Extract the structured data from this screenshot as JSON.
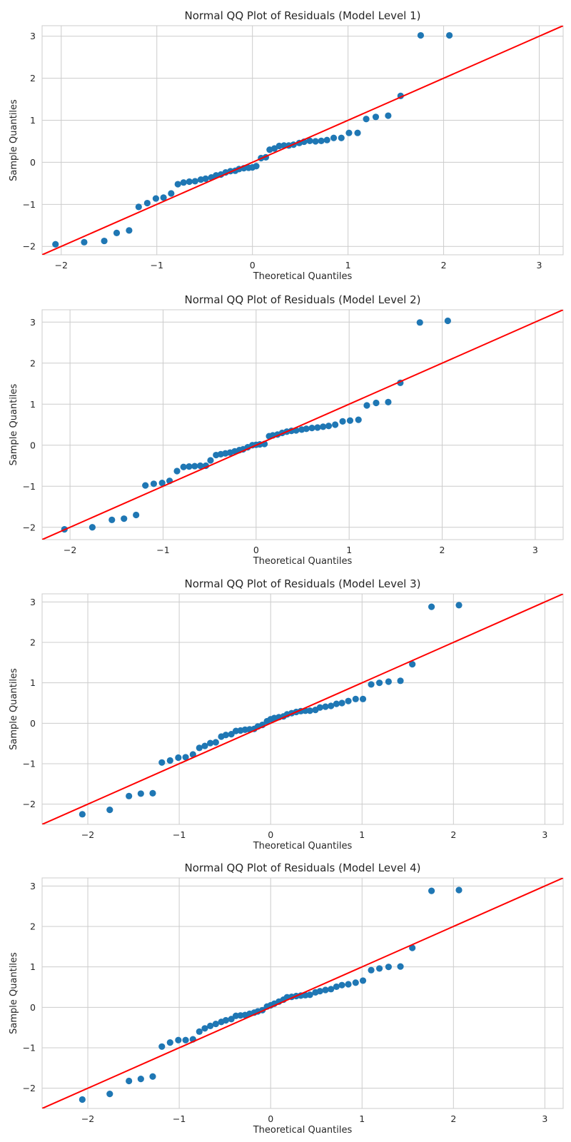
{
  "chart_data": [
    {
      "type": "scatter",
      "title": "Normal QQ Plot of Residuals (Model Level 1)",
      "xlabel": "Theoretical Quantiles",
      "ylabel": "Sample Quantiles",
      "xlim": [
        -2.2,
        3.25
      ],
      "ylim": [
        -2.2,
        3.25
      ],
      "xticks": [
        -2,
        -1,
        0,
        1,
        2,
        3
      ],
      "yticks": [
        -2,
        -1,
        0,
        1,
        2,
        3
      ],
      "grid": true,
      "colors": {
        "points": "#1f77b4",
        "line": "#ff0000"
      },
      "reference_line": {
        "slope": 1,
        "intercept": 0
      },
      "x": [
        -2.06,
        -1.76,
        -1.55,
        -1.42,
        -1.29,
        -1.19,
        -1.1,
        -1.01,
        -0.93,
        -0.85,
        -0.78,
        -0.72,
        -0.66,
        -0.6,
        -0.54,
        -0.49,
        -0.43,
        -0.38,
        -0.33,
        -0.28,
        -0.23,
        -0.18,
        -0.14,
        -0.09,
        -0.04,
        0.0,
        0.04,
        0.09,
        0.14,
        0.18,
        0.23,
        0.28,
        0.33,
        0.38,
        0.43,
        0.49,
        0.54,
        0.6,
        0.66,
        0.72,
        0.78,
        0.85,
        0.93,
        1.01,
        1.1,
        1.19,
        1.29,
        1.42,
        1.55,
        1.76,
        2.06
      ],
      "y": [
        -1.95,
        -1.9,
        -1.87,
        -1.68,
        -1.62,
        -1.06,
        -0.97,
        -0.86,
        -0.84,
        -0.74,
        -0.52,
        -0.48,
        -0.46,
        -0.45,
        -0.41,
        -0.39,
        -0.36,
        -0.31,
        -0.29,
        -0.24,
        -0.21,
        -0.2,
        -0.16,
        -0.14,
        -0.13,
        -0.12,
        -0.09,
        0.1,
        0.12,
        0.3,
        0.33,
        0.39,
        0.4,
        0.4,
        0.42,
        0.46,
        0.49,
        0.51,
        0.5,
        0.51,
        0.53,
        0.58,
        0.58,
        0.7,
        0.7,
        1.03,
        1.08,
        1.11,
        1.58,
        3.02,
        3.02
      ]
    },
    {
      "type": "scatter",
      "title": "Normal QQ Plot of Residuals (Model Level 2)",
      "xlabel": "Theoretical Quantiles",
      "ylabel": "Sample Quantiles",
      "xlim": [
        -2.3,
        3.3
      ],
      "ylim": [
        -2.3,
        3.3
      ],
      "xticks": [
        -2,
        -1,
        0,
        1,
        2,
        3
      ],
      "yticks": [
        -2,
        -1,
        0,
        1,
        2,
        3
      ],
      "grid": true,
      "colors": {
        "points": "#1f77b4",
        "line": "#ff0000"
      },
      "reference_line": {
        "slope": 1,
        "intercept": 0
      },
      "x": [
        -2.06,
        -1.76,
        -1.55,
        -1.42,
        -1.29,
        -1.19,
        -1.1,
        -1.01,
        -0.93,
        -0.85,
        -0.78,
        -0.72,
        -0.66,
        -0.6,
        -0.54,
        -0.49,
        -0.43,
        -0.38,
        -0.33,
        -0.28,
        -0.23,
        -0.18,
        -0.14,
        -0.09,
        -0.04,
        0.0,
        0.04,
        0.09,
        0.14,
        0.18,
        0.23,
        0.28,
        0.33,
        0.38,
        0.43,
        0.49,
        0.54,
        0.6,
        0.66,
        0.72,
        0.78,
        0.85,
        0.93,
        1.01,
        1.1,
        1.19,
        1.29,
        1.42,
        1.55,
        1.76,
        2.06
      ],
      "y": [
        -2.05,
        -2.0,
        -1.82,
        -1.79,
        -1.7,
        -0.98,
        -0.94,
        -0.92,
        -0.87,
        -0.63,
        -0.53,
        -0.52,
        -0.51,
        -0.5,
        -0.5,
        -0.37,
        -0.24,
        -0.22,
        -0.2,
        -0.18,
        -0.15,
        -0.12,
        -0.1,
        -0.05,
        0.0,
        0.01,
        0.02,
        0.03,
        0.22,
        0.24,
        0.26,
        0.3,
        0.33,
        0.35,
        0.36,
        0.38,
        0.4,
        0.42,
        0.43,
        0.45,
        0.47,
        0.5,
        0.58,
        0.6,
        0.62,
        0.97,
        1.03,
        1.05,
        1.52,
        2.99,
        3.03
      ]
    },
    {
      "type": "scatter",
      "title": "Normal QQ Plot of Residuals (Model Level 3)",
      "xlabel": "Theoretical Quantiles",
      "ylabel": "Sample Quantiles",
      "xlim": [
        -2.5,
        3.2
      ],
      "ylim": [
        -2.5,
        3.2
      ],
      "xticks": [
        -2,
        -1,
        0,
        1,
        2,
        3
      ],
      "yticks": [
        -2,
        -1,
        0,
        1,
        2,
        3
      ],
      "grid": true,
      "colors": {
        "points": "#1f77b4",
        "line": "#ff0000"
      },
      "reference_line": {
        "slope": 1,
        "intercept": 0
      },
      "x": [
        -2.06,
        -1.76,
        -1.55,
        -1.42,
        -1.29,
        -1.19,
        -1.1,
        -1.01,
        -0.93,
        -0.85,
        -0.78,
        -0.72,
        -0.66,
        -0.6,
        -0.54,
        -0.49,
        -0.43,
        -0.38,
        -0.33,
        -0.28,
        -0.23,
        -0.18,
        -0.14,
        -0.09,
        -0.04,
        0.0,
        0.04,
        0.09,
        0.14,
        0.18,
        0.23,
        0.28,
        0.33,
        0.38,
        0.43,
        0.49,
        0.54,
        0.6,
        0.66,
        0.72,
        0.78,
        0.85,
        0.93,
        1.01,
        1.1,
        1.19,
        1.29,
        1.42,
        1.55,
        1.76,
        2.06
      ],
      "y": [
        -2.25,
        -2.14,
        -1.8,
        -1.74,
        -1.73,
        -0.97,
        -0.92,
        -0.85,
        -0.84,
        -0.77,
        -0.61,
        -0.56,
        -0.49,
        -0.47,
        -0.33,
        -0.29,
        -0.27,
        -0.19,
        -0.18,
        -0.16,
        -0.15,
        -0.14,
        -0.08,
        -0.04,
        0.05,
        0.1,
        0.13,
        0.15,
        0.17,
        0.22,
        0.25,
        0.28,
        0.3,
        0.31,
        0.31,
        0.33,
        0.39,
        0.41,
        0.43,
        0.48,
        0.5,
        0.55,
        0.6,
        0.6,
        0.96,
        1.0,
        1.03,
        1.05,
        1.46,
        2.88,
        2.92
      ]
    },
    {
      "type": "scatter",
      "title": "Normal QQ Plot of Residuals (Model Level 4)",
      "xlabel": "Theoretical Quantiles",
      "ylabel": "Sample Quantiles",
      "xlim": [
        -2.5,
        3.2
      ],
      "ylim": [
        -2.5,
        3.2
      ],
      "xticks": [
        -2,
        -1,
        0,
        1,
        2,
        3
      ],
      "yticks": [
        -2,
        -1,
        0,
        1,
        2,
        3
      ],
      "grid": true,
      "colors": {
        "points": "#1f77b4",
        "line": "#ff0000"
      },
      "reference_line": {
        "slope": 1,
        "intercept": 0
      },
      "x": [
        -2.06,
        -1.76,
        -1.55,
        -1.42,
        -1.29,
        -1.19,
        -1.1,
        -1.01,
        -0.93,
        -0.85,
        -0.78,
        -0.72,
        -0.66,
        -0.6,
        -0.54,
        -0.49,
        -0.43,
        -0.38,
        -0.33,
        -0.28,
        -0.23,
        -0.18,
        -0.14,
        -0.09,
        -0.04,
        0.0,
        0.04,
        0.09,
        0.14,
        0.18,
        0.23,
        0.28,
        0.33,
        0.38,
        0.43,
        0.49,
        0.54,
        0.6,
        0.66,
        0.72,
        0.78,
        0.85,
        0.93,
        1.01,
        1.1,
        1.19,
        1.29,
        1.42,
        1.55,
        1.76,
        2.06
      ],
      "y": [
        -2.28,
        -2.14,
        -1.82,
        -1.77,
        -1.71,
        -0.97,
        -0.87,
        -0.81,
        -0.81,
        -0.79,
        -0.6,
        -0.52,
        -0.46,
        -0.41,
        -0.36,
        -0.32,
        -0.29,
        -0.21,
        -0.2,
        -0.19,
        -0.16,
        -0.13,
        -0.1,
        -0.07,
        0.02,
        0.05,
        0.09,
        0.14,
        0.19,
        0.25,
        0.26,
        0.28,
        0.29,
        0.3,
        0.31,
        0.37,
        0.4,
        0.43,
        0.45,
        0.51,
        0.55,
        0.57,
        0.61,
        0.66,
        0.92,
        0.96,
        1.0,
        1.01,
        1.47,
        2.88,
        2.9
      ]
    }
  ]
}
